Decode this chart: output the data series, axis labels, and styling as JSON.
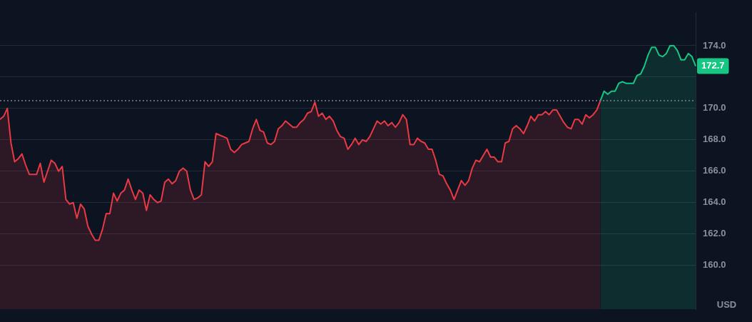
{
  "chart_data": {
    "type": "area",
    "ylabel": "USD",
    "grid": "y",
    "legend": false,
    "tick_labels": "y",
    "ylim": [
      157.2,
      176.1
    ],
    "yticks": [
      {
        "value": 160,
        "label": "160.0"
      },
      {
        "value": 162,
        "label": "162.0"
      },
      {
        "value": 164,
        "label": "164.0"
      },
      {
        "value": 166,
        "label": "166.0"
      },
      {
        "value": 168,
        "label": "168.0"
      },
      {
        "value": 170,
        "label": "170.0"
      },
      {
        "value": 172,
        "label": null
      },
      {
        "value": 174,
        "label": "174.0"
      }
    ],
    "ref_lines": [
      {
        "axis": "y",
        "value": 170.5,
        "line_style": "dotted",
        "color": "#7d8290"
      }
    ],
    "annotations": [
      "172.7"
    ],
    "categories": [
      null,
      null,
      null,
      null,
      null,
      null,
      null,
      null,
      null,
      null,
      null,
      null,
      null,
      null,
      null,
      null,
      null,
      null,
      null,
      null,
      null,
      null,
      null,
      null,
      null,
      null,
      null,
      null,
      null,
      null,
      null,
      null,
      null,
      null,
      null,
      null,
      null,
      null,
      null,
      null,
      null,
      null,
      null,
      null,
      null,
      null,
      null,
      null,
      null,
      null,
      null,
      null,
      null,
      null,
      null,
      null,
      null,
      null,
      null,
      null,
      null,
      null,
      null,
      null,
      null,
      null,
      null,
      null,
      null,
      null,
      null,
      null,
      null,
      null,
      null,
      null,
      null,
      null,
      null,
      null,
      null,
      null,
      null,
      null,
      null,
      null,
      null,
      null,
      null,
      null,
      null,
      null,
      null,
      null,
      null,
      null,
      null,
      null,
      null,
      null,
      null,
      null,
      null,
      null,
      null,
      null,
      null,
      null,
      null,
      null,
      null,
      null,
      null,
      null,
      null,
      null,
      null,
      null,
      null,
      null,
      null,
      null,
      null,
      null,
      null,
      null,
      null,
      null,
      null,
      null,
      null,
      null,
      null,
      null,
      null,
      null,
      null,
      null,
      null,
      null,
      null,
      null,
      null,
      null,
      null,
      null,
      null,
      null,
      null,
      null,
      null,
      null,
      null,
      null,
      null,
      null,
      null,
      null,
      null,
      null,
      null,
      null,
      null,
      null,
      null,
      null,
      null,
      null,
      null,
      null,
      null,
      null,
      null,
      null,
      null,
      null,
      null,
      null,
      null,
      null,
      null,
      null,
      null,
      null,
      null,
      null,
      null,
      null,
      null,
      null,
      null
    ],
    "series": [
      {
        "color": "#ea3943",
        "values": [
          169.3,
          169.5,
          170.0,
          167.8,
          166.6,
          166.8,
          167.1,
          166.4,
          165.8,
          165.8,
          165.8,
          166.5,
          165.3,
          166.0,
          166.7,
          166.5,
          166.0,
          166.3,
          164.2,
          163.9,
          164.0,
          163.0,
          163.9,
          163.6,
          162.5,
          162.0,
          161.6,
          161.6,
          162.3,
          163.3,
          163.3,
          164.6,
          164.1,
          164.6,
          164.8,
          165.5,
          164.8,
          164.2,
          164.8,
          164.6,
          163.5,
          164.5,
          164.2,
          164.0,
          164.1,
          165.3,
          165.5,
          165.2,
          165.4,
          166.0,
          166.2,
          166.0,
          164.8,
          164.2,
          164.3,
          164.5,
          166.6,
          166.3,
          166.6,
          168.4,
          168.3,
          168.2,
          168.1,
          167.4,
          167.2,
          167.4,
          167.7,
          167.8,
          167.9,
          168.7,
          169.3,
          168.6,
          168.5,
          167.8,
          167.7,
          167.9,
          168.7,
          168.9,
          169.2,
          169.0,
          168.8,
          168.8,
          169.1,
          169.3,
          169.7,
          169.8,
          170.4,
          169.5,
          169.7,
          169.3,
          169.5,
          169.2,
          168.6,
          168.2,
          168.1,
          167.4,
          167.7,
          168.1,
          167.7,
          168.0,
          167.9,
          168.2,
          168.7,
          169.2,
          169.0,
          169.2,
          168.9,
          169.1,
          168.8,
          169.1,
          169.6,
          169.3,
          167.7,
          167.7,
          168.1,
          167.9,
          167.8,
          167.4,
          167.4,
          166.7,
          165.8,
          165.7,
          165.2,
          164.8,
          164.2,
          164.8,
          165.4,
          165.1,
          165.4,
          166.2,
          166.7,
          166.6,
          167.0,
          167.4,
          166.9,
          166.9,
          166.6,
          166.6,
          167.8,
          167.9,
          168.7,
          168.9,
          168.7,
          168.4,
          168.9,
          169.5,
          169.2,
          169.6,
          169.6,
          169.8,
          169.6,
          169.9,
          169.9,
          169.5,
          169.1,
          168.8,
          168.7,
          169.3,
          169.3,
          169.0,
          169.6,
          169.4,
          169.6,
          169.9,
          170.5,
          null,
          null,
          null,
          null,
          null,
          null,
          null,
          null,
          null,
          null,
          null,
          null,
          null,
          null,
          null,
          null,
          null,
          null,
          null,
          null,
          null,
          null,
          null,
          null,
          null,
          null
        ]
      },
      {
        "color": "#16c784",
        "values": [
          null,
          null,
          null,
          null,
          null,
          null,
          null,
          null,
          null,
          null,
          null,
          null,
          null,
          null,
          null,
          null,
          null,
          null,
          null,
          null,
          null,
          null,
          null,
          null,
          null,
          null,
          null,
          null,
          null,
          null,
          null,
          null,
          null,
          null,
          null,
          null,
          null,
          null,
          null,
          null,
          null,
          null,
          null,
          null,
          null,
          null,
          null,
          null,
          null,
          null,
          null,
          null,
          null,
          null,
          null,
          null,
          null,
          null,
          null,
          null,
          null,
          null,
          null,
          null,
          null,
          null,
          null,
          null,
          null,
          null,
          null,
          null,
          null,
          null,
          null,
          null,
          null,
          null,
          null,
          null,
          null,
          null,
          null,
          null,
          null,
          null,
          null,
          null,
          null,
          null,
          null,
          null,
          null,
          null,
          null,
          null,
          null,
          null,
          null,
          null,
          null,
          null,
          null,
          null,
          null,
          null,
          null,
          null,
          null,
          null,
          null,
          null,
          null,
          null,
          null,
          null,
          null,
          null,
          null,
          null,
          null,
          null,
          null,
          null,
          null,
          null,
          null,
          null,
          null,
          null,
          null,
          null,
          null,
          null,
          null,
          null,
          null,
          null,
          null,
          null,
          null,
          null,
          null,
          null,
          null,
          null,
          null,
          null,
          null,
          null,
          null,
          null,
          null,
          null,
          null,
          null,
          null,
          null,
          null,
          null,
          null,
          null,
          null,
          null,
          170.5,
          171.1,
          170.9,
          171.1,
          171.1,
          171.6,
          171.7,
          171.6,
          171.6,
          171.6,
          172.1,
          172.2,
          172.7,
          173.4,
          173.9,
          173.9,
          173.4,
          173.3,
          173.5,
          174.0,
          174.0,
          173.7,
          173.1,
          173.1,
          173.5,
          173.3,
          172.7
        ]
      }
    ]
  }
}
